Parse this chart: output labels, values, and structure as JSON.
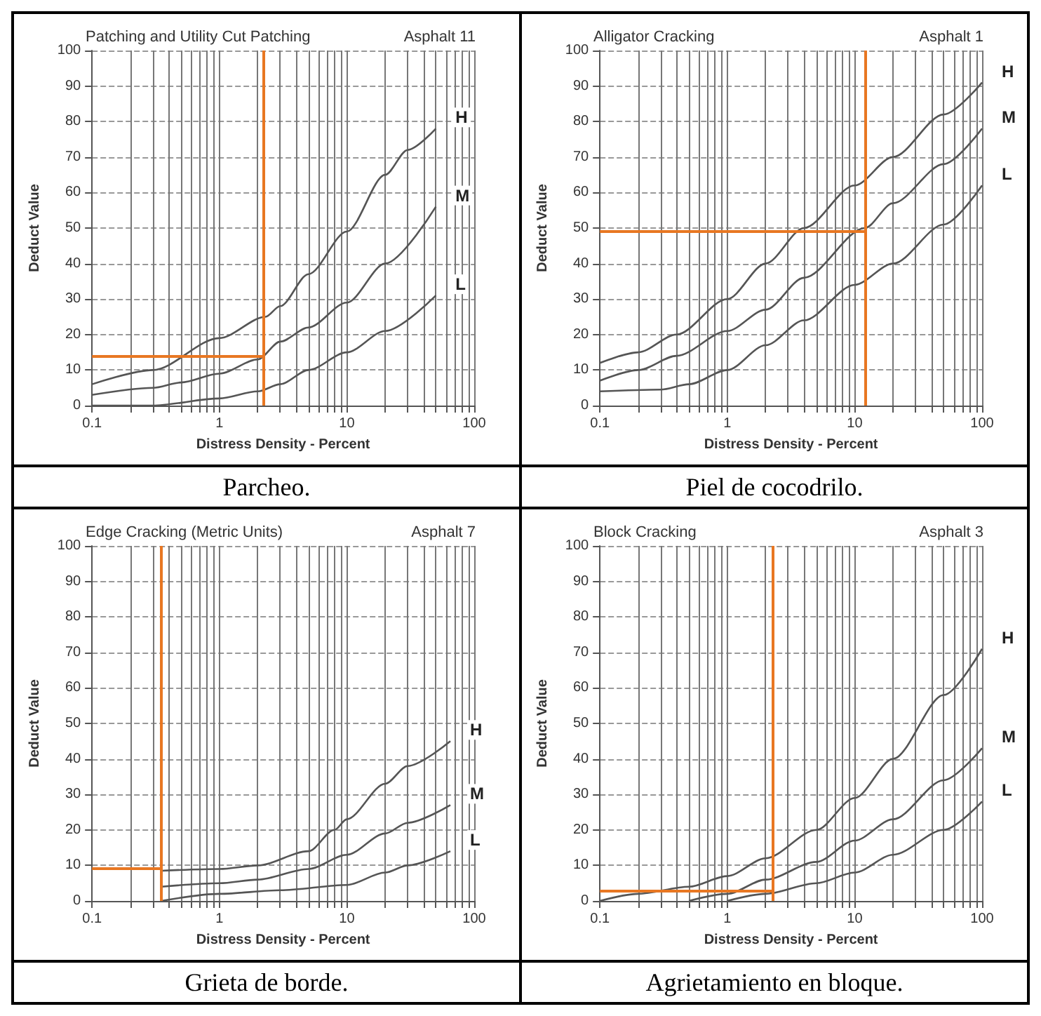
{
  "chart_data": [
    {
      "type": "line",
      "title": "Patching and Utility Cut Patching",
      "annotations": [
        "Asphalt 11",
        "Parcheo."
      ],
      "xlabel": "Distress Density - Percent",
      "ylabel": "Deduct Value",
      "log": "x",
      "xlim": [
        0.1,
        100
      ],
      "xticks": [
        0.1,
        {
          "value": 0.2,
          "label": null
        },
        {
          "value": 0.3,
          "label": null
        },
        {
          "value": 0.4,
          "label": null
        },
        {
          "value": 0.5,
          "label": null
        },
        {
          "value": 0.6,
          "label": null
        },
        {
          "value": 0.7,
          "label": null
        },
        {
          "value": 0.8,
          "label": null
        },
        {
          "value": 0.9,
          "label": null
        },
        1,
        {
          "value": 2,
          "label": null
        },
        {
          "value": 3,
          "label": null
        },
        {
          "value": 4,
          "label": null
        },
        {
          "value": 5,
          "label": null
        },
        {
          "value": 6,
          "label": null
        },
        {
          "value": 7,
          "label": null
        },
        {
          "value": 8,
          "label": null
        },
        {
          "value": 9,
          "label": null
        },
        10,
        {
          "value": 20,
          "label": null
        },
        {
          "value": 30,
          "label": null
        },
        {
          "value": 40,
          "label": null
        },
        {
          "value": 50,
          "label": null
        },
        {
          "value": 60,
          "label": null
        },
        {
          "value": 70,
          "label": null
        },
        {
          "value": 80,
          "label": null
        },
        {
          "value": 90,
          "label": null
        },
        100
      ],
      "ylim": [
        0,
        100
      ],
      "yticks": [
        0,
        10,
        20,
        30,
        40,
        50,
        60,
        70,
        80,
        90,
        100
      ],
      "grid": true,
      "marker": "none",
      "line_style": "solid",
      "series": [
        {
          "name": "H",
          "color": "#555555",
          "x": [
            0.1,
            0.3,
            1,
            2.3,
            3,
            5,
            10,
            20,
            30,
            50
          ],
          "values": [
            6,
            10,
            19,
            25,
            28,
            37,
            49,
            65,
            72,
            78
          ]
        },
        {
          "name": "M",
          "color": "#555555",
          "x": [
            0.1,
            0.3,
            0.5,
            1,
            2,
            3,
            5,
            10,
            20,
            50
          ],
          "values": [
            3,
            5,
            6.5,
            9,
            13,
            18,
            22,
            29,
            40,
            56
          ]
        },
        {
          "name": "L",
          "color": "#555555",
          "x": [
            0.1,
            0.3,
            1,
            2,
            3,
            5,
            10,
            20,
            50
          ],
          "values": [
            0,
            0,
            2,
            4,
            6,
            10,
            15,
            21,
            31
          ]
        }
      ],
      "ref_lines": [
        {
          "axis": "x",
          "value": 2.2,
          "color": "#e87722"
        },
        {
          "axis": "y",
          "value": 14,
          "color": "#e87722"
        }
      ]
    },
    {
      "type": "line",
      "title": "Alligator Cracking",
      "annotations": [
        "Asphalt 1",
        "Piel de cocodrilo."
      ],
      "xlabel": "Distress Density - Percent",
      "ylabel": "Deduct Value",
      "log": "x",
      "xlim": [
        0.1,
        100
      ],
      "xticks": [
        0.1,
        {
          "value": 0.2,
          "label": null
        },
        {
          "value": 0.3,
          "label": null
        },
        {
          "value": 0.4,
          "label": null
        },
        {
          "value": 0.5,
          "label": null
        },
        {
          "value": 0.6,
          "label": null
        },
        {
          "value": 0.7,
          "label": null
        },
        {
          "value": 0.8,
          "label": null
        },
        {
          "value": 0.9,
          "label": null
        },
        1,
        {
          "value": 2,
          "label": null
        },
        {
          "value": 3,
          "label": null
        },
        {
          "value": 4,
          "label": null
        },
        {
          "value": 5,
          "label": null
        },
        {
          "value": 6,
          "label": null
        },
        {
          "value": 7,
          "label": null
        },
        {
          "value": 8,
          "label": null
        },
        {
          "value": 9,
          "label": null
        },
        10,
        {
          "value": 20,
          "label": null
        },
        {
          "value": 30,
          "label": null
        },
        {
          "value": 40,
          "label": null
        },
        {
          "value": 50,
          "label": null
        },
        {
          "value": 60,
          "label": null
        },
        {
          "value": 70,
          "label": null
        },
        {
          "value": 80,
          "label": null
        },
        {
          "value": 90,
          "label": null
        },
        100
      ],
      "ylim": [
        0,
        100
      ],
      "yticks": [
        0,
        10,
        20,
        30,
        40,
        50,
        60,
        70,
        80,
        90,
        100
      ],
      "grid": true,
      "marker": "none",
      "line_style": "solid",
      "series": [
        {
          "name": "H",
          "color": "#555555",
          "x": [
            0.1,
            0.2,
            0.4,
            1,
            2,
            4,
            10,
            20,
            50,
            100
          ],
          "values": [
            12,
            15,
            20,
            30,
            40,
            50,
            62,
            70,
            82,
            91
          ]
        },
        {
          "name": "M",
          "color": "#555555",
          "x": [
            0.1,
            0.2,
            0.4,
            1,
            2,
            4,
            12,
            20,
            50,
            100
          ],
          "values": [
            7,
            10,
            14,
            21,
            27,
            36,
            50,
            57,
            68,
            78
          ]
        },
        {
          "name": "L",
          "color": "#555555",
          "x": [
            0.1,
            0.3,
            0.5,
            1,
            2,
            4,
            10,
            20,
            50,
            100
          ],
          "values": [
            4,
            4.5,
            6,
            10,
            17,
            24,
            34,
            40,
            51,
            62
          ]
        }
      ],
      "ref_lines": [
        {
          "axis": "x",
          "value": 12,
          "color": "#e87722"
        },
        {
          "axis": "y",
          "value": 49,
          "color": "#e87722"
        }
      ]
    },
    {
      "type": "line",
      "title": "Edge Cracking (Metric Units)",
      "annotations": [
        "Asphalt 7",
        "Grieta de borde."
      ],
      "xlabel": "Distress Density - Percent",
      "ylabel": "Deduct Value",
      "log": "x",
      "xlim": [
        0.1,
        100
      ],
      "xticks": [
        0.1,
        {
          "value": 0.2,
          "label": null
        },
        {
          "value": 0.3,
          "label": null
        },
        {
          "value": 0.4,
          "label": null
        },
        {
          "value": 0.5,
          "label": null
        },
        {
          "value": 0.6,
          "label": null
        },
        {
          "value": 0.7,
          "label": null
        },
        {
          "value": 0.8,
          "label": null
        },
        {
          "value": 0.9,
          "label": null
        },
        1,
        {
          "value": 2,
          "label": null
        },
        {
          "value": 3,
          "label": null
        },
        {
          "value": 4,
          "label": null
        },
        {
          "value": 5,
          "label": null
        },
        {
          "value": 6,
          "label": null
        },
        {
          "value": 7,
          "label": null
        },
        {
          "value": 8,
          "label": null
        },
        {
          "value": 9,
          "label": null
        },
        10,
        {
          "value": 20,
          "label": null
        },
        {
          "value": 30,
          "label": null
        },
        {
          "value": 40,
          "label": null
        },
        {
          "value": 50,
          "label": null
        },
        {
          "value": 60,
          "label": null
        },
        {
          "value": 70,
          "label": null
        },
        {
          "value": 80,
          "label": null
        },
        {
          "value": 90,
          "label": null
        },
        100
      ],
      "ylim": [
        0,
        100
      ],
      "yticks": [
        0,
        10,
        20,
        30,
        40,
        50,
        60,
        70,
        80,
        90,
        100
      ],
      "grid": true,
      "marker": "none",
      "line_style": "solid",
      "series": [
        {
          "name": "H",
          "color": "#555555",
          "x": [
            0.35,
            1,
            2,
            5,
            8,
            10,
            20,
            30,
            65
          ],
          "values": [
            8.5,
            9,
            10,
            14,
            20,
            23,
            33,
            38,
            45
          ]
        },
        {
          "name": "M",
          "color": "#555555",
          "x": [
            0.35,
            1,
            2,
            5,
            10,
            20,
            30,
            65
          ],
          "values": [
            4,
            5,
            6,
            9,
            13,
            19,
            22,
            27
          ]
        },
        {
          "name": "L",
          "color": "#555555",
          "x": [
            0.35,
            1,
            3,
            10,
            20,
            30,
            65
          ],
          "values": [
            0,
            2,
            3,
            4.5,
            8,
            10,
            14
          ]
        }
      ],
      "ref_lines": [
        {
          "axis": "x",
          "value": 0.35,
          "color": "#e87722"
        },
        {
          "axis": "y",
          "value": 9,
          "color": "#e87722"
        }
      ]
    },
    {
      "type": "line",
      "title": "Block Cracking",
      "annotations": [
        "Asphalt 3",
        "Agrietamiento en bloque."
      ],
      "xlabel": "Distress Density - Percent",
      "ylabel": "Deduct Value",
      "log": "x",
      "xlim": [
        0.1,
        100
      ],
      "xticks": [
        0.1,
        {
          "value": 0.2,
          "label": null
        },
        {
          "value": 0.3,
          "label": null
        },
        {
          "value": 0.4,
          "label": null
        },
        {
          "value": 0.5,
          "label": null
        },
        {
          "value": 0.6,
          "label": null
        },
        {
          "value": 0.7,
          "label": null
        },
        {
          "value": 0.8,
          "label": null
        },
        {
          "value": 0.9,
          "label": null
        },
        1,
        {
          "value": 2,
          "label": null
        },
        {
          "value": 3,
          "label": null
        },
        {
          "value": 4,
          "label": null
        },
        {
          "value": 5,
          "label": null
        },
        {
          "value": 6,
          "label": null
        },
        {
          "value": 7,
          "label": null
        },
        {
          "value": 8,
          "label": null
        },
        {
          "value": 9,
          "label": null
        },
        10,
        {
          "value": 20,
          "label": null
        },
        {
          "value": 30,
          "label": null
        },
        {
          "value": 40,
          "label": null
        },
        {
          "value": 50,
          "label": null
        },
        {
          "value": 60,
          "label": null
        },
        {
          "value": 70,
          "label": null
        },
        {
          "value": 80,
          "label": null
        },
        {
          "value": 90,
          "label": null
        },
        100
      ],
      "ylim": [
        0,
        100
      ],
      "yticks": [
        0,
        10,
        20,
        30,
        40,
        50,
        60,
        70,
        80,
        90,
        100
      ],
      "grid": true,
      "marker": "none",
      "line_style": "solid",
      "series": [
        {
          "name": "H",
          "color": "#555555",
          "x": [
            0.1,
            0.2,
            0.5,
            1,
            2,
            5,
            10,
            20,
            50,
            100
          ],
          "values": [
            0,
            2,
            4,
            7,
            12,
            20,
            29,
            40,
            58,
            71
          ]
        },
        {
          "name": "M",
          "color": "#555555",
          "x": [
            0.5,
            1,
            2,
            5,
            10,
            20,
            50,
            100
          ],
          "values": [
            0,
            2,
            6,
            11,
            17,
            23,
            34,
            43
          ]
        },
        {
          "name": "L",
          "color": "#555555",
          "x": [
            1,
            2,
            5,
            10,
            20,
            50,
            100
          ],
          "values": [
            0,
            2,
            5,
            8,
            13,
            20,
            28
          ]
        }
      ],
      "ref_lines": [
        {
          "axis": "x",
          "value": 2.3,
          "color": "#e87722"
        },
        {
          "axis": "y",
          "value": 3,
          "color": "#e87722"
        }
      ]
    }
  ]
}
